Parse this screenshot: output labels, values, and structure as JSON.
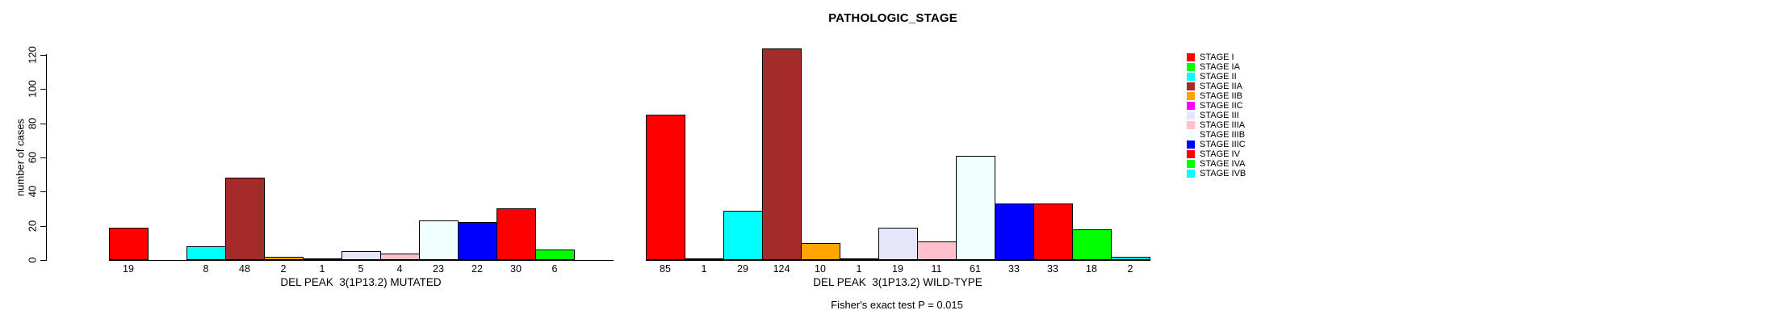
{
  "title": "PATHOLOGIC_STAGE",
  "footer": "Fisher's exact test P = 0.015",
  "y_axis": {
    "label": "number of cases",
    "ticks": [
      0,
      20,
      40,
      60,
      80,
      100,
      120
    ]
  },
  "chart_data": {
    "type": "bar",
    "title": "PATHOLOGIC_STAGE",
    "xlabel": "",
    "ylabel": "number of cases",
    "ylim": [
      0,
      120
    ],
    "yticks": [
      0,
      20,
      40,
      60,
      80,
      100,
      120
    ],
    "grid": false,
    "legend_position": "right",
    "bar_value_labels_below_axis": true,
    "categories": [
      "STAGE I",
      "STAGE IA",
      "STAGE II",
      "STAGE IIA",
      "STAGE IIB",
      "STAGE IIC",
      "STAGE III",
      "STAGE IIIA",
      "STAGE IIIB",
      "STAGE IIIC",
      "STAGE IV",
      "STAGE IVA",
      "STAGE IVB"
    ],
    "colors": [
      "#FF0000",
      "#00FF00",
      "#00FFFF",
      "#A52A2A",
      "#FFA500",
      "#FF00FF",
      "#E6E6FA",
      "#FFC0CB",
      "#F0FFFF",
      "#0000FF",
      "#FF0000",
      "#00FF00",
      "#00FFFF"
    ],
    "series": [
      {
        "name": "DEL PEAK  3(1P13.2) MUTATED",
        "group_key": "mutated",
        "values": [
          19,
          null,
          8,
          48,
          2,
          1,
          5,
          4,
          23,
          22,
          30,
          6,
          null
        ]
      },
      {
        "name": "DEL PEAK  3(1P13.2) WILD-TYPE",
        "group_key": "wild-type",
        "values": [
          85,
          1,
          29,
          124,
          10,
          1,
          19,
          11,
          61,
          33,
          33,
          18,
          2
        ]
      }
    ],
    "annotation": "Fisher's exact test P = 0.015"
  }
}
